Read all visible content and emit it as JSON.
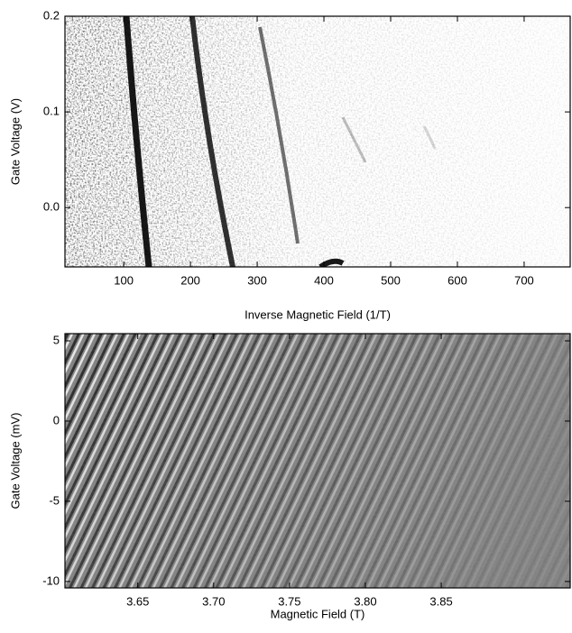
{
  "chart_data": [
    {
      "type": "heatmap",
      "x_label": "Inverse Magnetic Field (1/T)",
      "y_label": "Gate Voltage (V)",
      "xlim": [
        12,
        769
      ],
      "xticks": [
        100,
        200,
        300,
        400,
        500,
        600,
        700
      ],
      "ylim": [
        -0.062,
        0.2
      ],
      "yticks": [
        0.2,
        0.1,
        {
          "value": 0,
          "label": "0.0"
        }
      ]
    },
    {
      "type": "heatmap",
      "x_label": "Magnetic Field (T)",
      "y_label": "Gate Voltage (mV)",
      "xlim": [
        3.602,
        3.935
      ],
      "xticks": [
        3.65,
        {
          "value": 3.7,
          "label": "3.70"
        },
        3.75,
        {
          "value": 3.8,
          "label": "3.80"
        },
        3.85
      ],
      "ylim": [
        -10.4,
        5.45
      ],
      "yticks": [
        5,
        0,
        -5,
        -10
      ]
    }
  ]
}
